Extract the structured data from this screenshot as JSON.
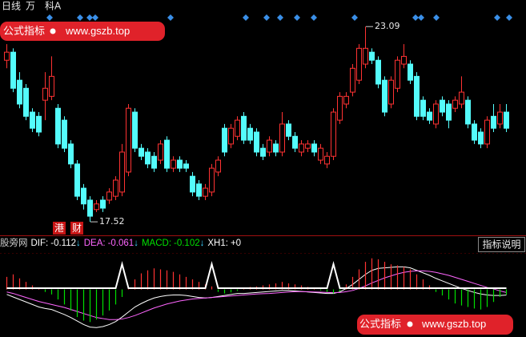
{
  "header": {
    "period": "日线",
    "item1": "万",
    "item2": "科A"
  },
  "watermarks": [
    {
      "label": "公式指标",
      "url": "www.gszb.top"
    },
    {
      "label": "公式指标",
      "url": "www.gszb.top"
    }
  ],
  "badges": [
    "港",
    "财"
  ],
  "chart_data": [
    {
      "type": "candlestick",
      "up_color": "#ff3232",
      "down_color": "#54fcfc",
      "ylim": [
        17.18,
        23.3
      ],
      "open": [
        22.13,
        22.36,
        21.56,
        21.33,
        20.65,
        20.53,
        20.99,
        21.1,
        20.76,
        20.42,
        19.74,
        19.17,
        18.48,
        18.14,
        17.87,
        18.14,
        18.14,
        18.25,
        18.37,
        18.94,
        20.65,
        19.62,
        19.51,
        19.39,
        19.28,
        19.85,
        19.05,
        19.28,
        19.17,
        18.82,
        18.6,
        18.25,
        18.37,
        18.94,
        20.19,
        19.74,
        19.96,
        20.53,
        20.19,
        20.08,
        19.62,
        19.51,
        19.74,
        19.51,
        20.31,
        19.96,
        19.51,
        19.62,
        19.74,
        19.28,
        19.17,
        19.39,
        20.42,
        20.88,
        21.22,
        21.56,
        22.02,
        22.36,
        22.13,
        21.56,
        20.88,
        21.33,
        22.02,
        22.02,
        21.67,
        20.99,
        20.65,
        20.31,
        20.99,
        20.88,
        20.76,
        20.88,
        20.99,
        20.31,
        20.08,
        19.74,
        20.53,
        20.31,
        20.65
      ],
      "close": [
        22.36,
        21.33,
        20.88,
        20.53,
        20.19,
        20.08,
        21.33,
        21.67,
        19.74,
        19.62,
        19.17,
        18.25,
        18.03,
        17.68,
        18.03,
        17.91,
        18.37,
        18.71,
        19.51,
        20.76,
        19.62,
        19.39,
        19.17,
        19.05,
        19.74,
        19.05,
        19.28,
        19.05,
        19.05,
        18.37,
        18.25,
        18.48,
        19.05,
        19.28,
        19.51,
        20.19,
        20.42,
        19.85,
        19.85,
        19.51,
        19.39,
        19.85,
        19.51,
        20.31,
        19.96,
        19.62,
        19.74,
        19.74,
        19.51,
        19.62,
        19.39,
        20.65,
        21.1,
        21.1,
        21.9,
        22.47,
        22.47,
        22.13,
        21.45,
        20.65,
        21.56,
        22.13,
        22.24,
        21.56,
        20.53,
        20.53,
        20.42,
        20.88,
        20.65,
        20.42,
        20.99,
        21.22,
        20.31,
        19.85,
        19.74,
        20.42,
        20.19,
        20.65,
        20.19
      ],
      "high": [
        22.59,
        22.47,
        21.79,
        21.45,
        20.76,
        20.65,
        21.79,
        22.24,
        20.88,
        20.53,
        19.85,
        19.28,
        18.6,
        18.25,
        18.14,
        18.25,
        18.48,
        18.82,
        19.74,
        20.88,
        20.76,
        19.74,
        19.62,
        19.51,
        19.85,
        19.96,
        19.39,
        19.39,
        19.28,
        18.94,
        18.71,
        18.6,
        19.17,
        19.39,
        20.31,
        20.31,
        20.53,
        20.65,
        20.31,
        20.19,
        19.74,
        19.96,
        19.85,
        20.65,
        20.42,
        20.08,
        19.85,
        19.85,
        19.85,
        19.74,
        19.51,
        20.76,
        21.22,
        21.22,
        22.02,
        22.59,
        23.09,
        22.47,
        22.24,
        21.67,
        21.67,
        22.24,
        22.59,
        22.13,
        21.79,
        21.1,
        20.76,
        20.99,
        21.1,
        20.99,
        21.1,
        21.67,
        21.1,
        20.42,
        20.19,
        20.53,
        20.88,
        20.88,
        20.88
      ],
      "low": [
        21.9,
        21.22,
        20.76,
        20.42,
        20.08,
        19.96,
        20.42,
        20.99,
        19.62,
        19.51,
        19.05,
        18.14,
        17.87,
        17.52,
        17.8,
        17.8,
        18.03,
        18.14,
        18.25,
        18.82,
        19.51,
        19.28,
        19.05,
        18.94,
        19.17,
        18.94,
        18.94,
        18.94,
        18.94,
        18.25,
        18.14,
        18.14,
        18.25,
        18.82,
        19.39,
        19.62,
        19.85,
        19.74,
        19.74,
        19.39,
        19.28,
        19.39,
        19.39,
        19.39,
        19.85,
        19.51,
        19.39,
        19.51,
        19.39,
        19.17,
        19.05,
        19.28,
        20.31,
        20.76,
        21.1,
        21.45,
        21.9,
        22.02,
        21.33,
        20.53,
        20.76,
        21.22,
        21.9,
        21.45,
        20.42,
        20.42,
        20.31,
        20.19,
        20.53,
        20.19,
        20.65,
        20.76,
        20.19,
        19.74,
        19.62,
        19.62,
        20.08,
        20.19,
        20.08
      ]
    },
    {
      "type": "macd",
      "source": "股旁网",
      "button": "指标说明",
      "ylim": [
        -0.9,
        0.95
      ],
      "y2lim": [
        -1.93,
        1.93
      ],
      "series": [
        {
          "name": "DIF:",
          "color": "#ffffff",
          "arrow": "↓",
          "values": [
            -0.1,
            -0.15,
            -0.2,
            -0.25,
            -0.3,
            -0.35,
            -0.38,
            -0.4,
            -0.45,
            -0.5,
            -0.56,
            -0.63,
            -0.7,
            -0.75,
            -0.76,
            -0.74,
            -0.7,
            -0.64,
            -0.55,
            -0.45,
            -0.35,
            -0.28,
            -0.22,
            -0.17,
            -0.14,
            -0.12,
            -0.11,
            -0.11,
            -0.12,
            -0.14,
            -0.16,
            -0.17,
            -0.16,
            -0.14,
            -0.12,
            -0.1,
            -0.08,
            -0.08,
            -0.07,
            -0.06,
            -0.05,
            -0.04,
            -0.03,
            -0.02,
            -0.02,
            -0.03,
            -0.04,
            -0.05,
            -0.06,
            -0.07,
            -0.08,
            -0.08,
            -0.05,
            0.02,
            0.1,
            0.2,
            0.3,
            0.38,
            0.42,
            0.43,
            0.44,
            0.45,
            0.45,
            0.43,
            0.38,
            0.33,
            0.28,
            0.22,
            0.17,
            0.12,
            0.07,
            0.02,
            -0.02,
            -0.06,
            -0.09,
            -0.11,
            -0.12,
            -0.12,
            -0.112
          ]
        },
        {
          "name": "DEA:",
          "color": "#ff66ff",
          "arrow": "↓",
          "values": [
            -0.05,
            -0.08,
            -0.12,
            -0.16,
            -0.2,
            -0.24,
            -0.27,
            -0.3,
            -0.33,
            -0.36,
            -0.4,
            -0.44,
            -0.48,
            -0.52,
            -0.56,
            -0.58,
            -0.6,
            -0.6,
            -0.59,
            -0.56,
            -0.52,
            -0.47,
            -0.42,
            -0.37,
            -0.33,
            -0.29,
            -0.26,
            -0.23,
            -0.21,
            -0.19,
            -0.18,
            -0.17,
            -0.16,
            -0.15,
            -0.14,
            -0.13,
            -0.12,
            -0.11,
            -0.1,
            -0.09,
            -0.085,
            -0.08,
            -0.07,
            -0.06,
            -0.05,
            -0.045,
            -0.045,
            -0.045,
            -0.05,
            -0.055,
            -0.06,
            -0.065,
            -0.06,
            -0.045,
            -0.02,
            0.02,
            0.07,
            0.13,
            0.18,
            0.23,
            0.27,
            0.31,
            0.34,
            0.36,
            0.37,
            0.37,
            0.36,
            0.34,
            0.31,
            0.28,
            0.24,
            0.2,
            0.16,
            0.12,
            0.08,
            0.04,
            0.01,
            -0.03,
            -0.061
          ]
        },
        {
          "name": "MACD:",
          "color": "#00e000",
          "up_color": "#ff3232",
          "style": "histogram",
          "arrow": "↓",
          "values": [
            0.25,
            0.3,
            0.22,
            0.15,
            0.08,
            0.02,
            -0.05,
            -0.1,
            -0.2,
            -0.3,
            -0.42,
            -0.55,
            -0.62,
            -0.65,
            -0.6,
            -0.52,
            -0.42,
            -0.3,
            -0.15,
            0.05,
            0.2,
            0.32,
            0.38,
            0.42,
            0.4,
            0.38,
            0.35,
            0.3,
            0.25,
            0.2,
            0.15,
            0.1,
            0.06,
            -0.05,
            -0.08,
            -0.06,
            -0.03,
            0.02,
            0.05,
            0.06,
            0.08,
            0.1,
            0.12,
            0.15,
            0.12,
            0.1,
            0.08,
            0.05,
            0.02,
            -0.02,
            -0.05,
            -0.08,
            -0.04,
            0.1,
            0.25,
            0.4,
            0.55,
            0.62,
            0.6,
            0.55,
            0.5,
            0.48,
            0.45,
            0.4,
            0.3,
            0.2,
            0.08,
            -0.05,
            -0.12,
            -0.2,
            -0.28,
            -0.32,
            -0.35,
            -0.38,
            -0.4,
            -0.35,
            -0.25,
            -0.15,
            -0.102
          ]
        },
        {
          "name": "XH1:",
          "color": "#ffffff",
          "axis": "y2",
          "last_label": "+0",
          "values": [
            0,
            0,
            0,
            0,
            0,
            0,
            0,
            0,
            0,
            0,
            0,
            0,
            0,
            0,
            0,
            0,
            0,
            0,
            1,
            0,
            0,
            0,
            0,
            0,
            0,
            0,
            0,
            0,
            0,
            0,
            0,
            0,
            1,
            0,
            0,
            0,
            0,
            0,
            0,
            0,
            0,
            0,
            0,
            0,
            0,
            0,
            0,
            0,
            0,
            0,
            0,
            1,
            0,
            0,
            0,
            0,
            0,
            0,
            0,
            0,
            0,
            0,
            0,
            0,
            0,
            0,
            0,
            0,
            0,
            0,
            0,
            0,
            0,
            0,
            0,
            0,
            0,
            0,
            0
          ]
        }
      ]
    }
  ]
}
